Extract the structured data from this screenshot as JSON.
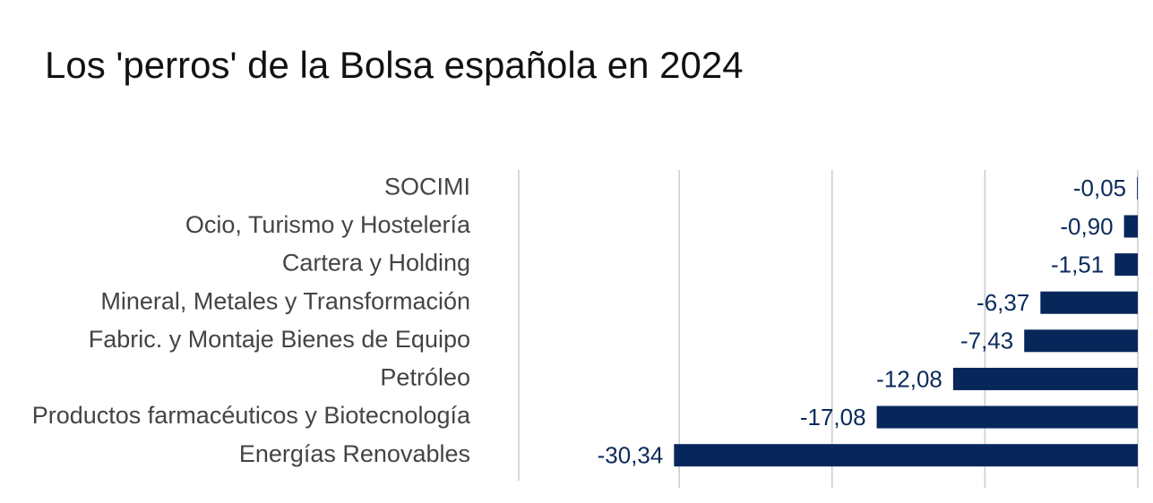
{
  "chart_data": {
    "type": "barh",
    "title": "Los 'perros' de la Bolsa española en 2024",
    "categories": [
      "SOCIMI",
      "Ocio, Turismo y Hostelería",
      "Cartera y Holding",
      "Mineral, Metales y Transformación",
      "Fabric. y Montaje Bienes de Equipo",
      "Petróleo",
      "Productos farmacéuticos y Biotecnología",
      "Energías Renovables"
    ],
    "values": [
      -0.05,
      -0.9,
      -1.51,
      -6.37,
      -7.43,
      -12.08,
      -17.08,
      -30.34
    ],
    "value_labels": [
      "-0,05",
      "-0,90",
      "-1,51",
      "-6,37",
      "-7,43",
      "-12,08",
      "-17,08",
      "-30,34"
    ],
    "color": "#07275b",
    "xlim": [
      -40.5,
      0
    ],
    "xticks": [
      -30,
      -20,
      -10,
      0
    ],
    "grid": true
  }
}
